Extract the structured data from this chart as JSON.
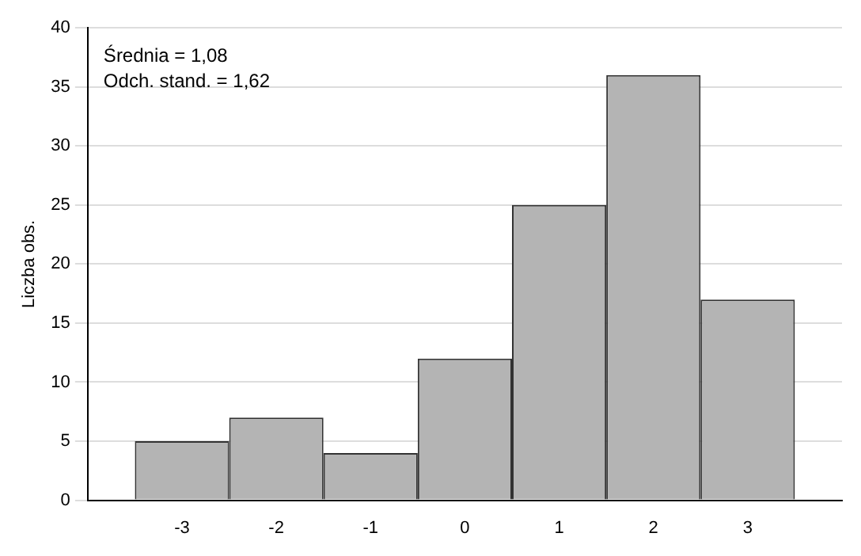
{
  "chart_data": {
    "type": "histogram",
    "ylabel": "Liczba obs.",
    "bins": [
      -3.5,
      -2.5,
      -1.5,
      -0.5,
      0.5,
      1.5,
      2.5,
      3.5
    ],
    "values": [
      5,
      7,
      4,
      12,
      25,
      36,
      17
    ],
    "color": "#b4b4b4",
    "xlim": [
      -4,
      4
    ],
    "xticks": [
      -3,
      -2,
      -1,
      0,
      1,
      2,
      3
    ],
    "ylim": [
      0,
      40
    ],
    "yticks": [
      0,
      5,
      10,
      15,
      20,
      25,
      30,
      35,
      40
    ],
    "grid": "y",
    "annotations": [
      "Średnia = 1,08",
      "Odch. stand. = 1,62"
    ]
  }
}
